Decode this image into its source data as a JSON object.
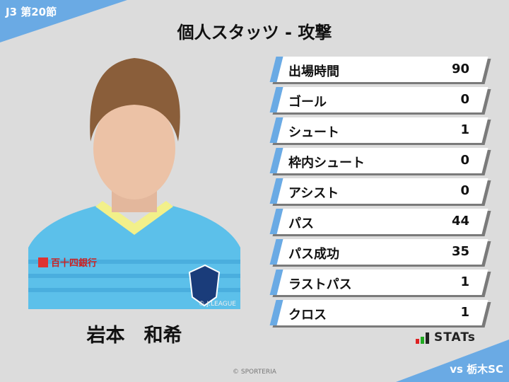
{
  "header": {
    "round": "J3 第20節",
    "title": "個人スタッツ - 攻撃"
  },
  "player": {
    "name": "岩本　和希",
    "photo_credit": "© J.LEAGUE",
    "sponsor": "百十四銀行"
  },
  "stats": [
    {
      "label": "出場時間",
      "value": "90"
    },
    {
      "label": "ゴール",
      "value": "0"
    },
    {
      "label": "シュート",
      "value": "1"
    },
    {
      "label": "枠内シュート",
      "value": "0"
    },
    {
      "label": "アシスト",
      "value": "0"
    },
    {
      "label": "パス",
      "value": "44"
    },
    {
      "label": "パス成功",
      "value": "35"
    },
    {
      "label": "ラストパス",
      "value": "1"
    },
    {
      "label": "クロス",
      "value": "1"
    }
  ],
  "branding": {
    "logo_text": "STATs"
  },
  "footer": {
    "opponent": "vs 栃木SC",
    "copyright": "© SPORTERIA"
  },
  "colors": {
    "accent": "#6aaae4",
    "background": "#dcdcdc"
  }
}
